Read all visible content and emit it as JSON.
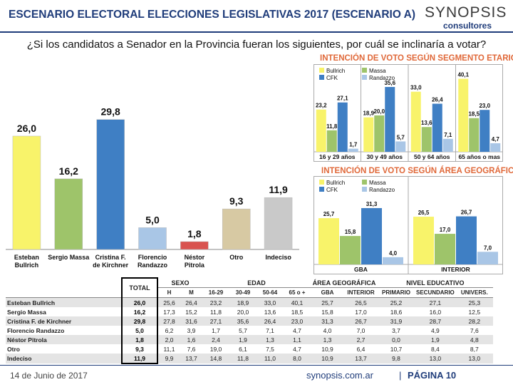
{
  "header": {
    "title": "ESCENARIO ELECTORAL ELECCIONES LEGISLATIVAS 2017 (ESCENARIO A)",
    "logo_name": "SYNOPSIS",
    "logo_sub": "consultores"
  },
  "question": "¿Si los candidatos a Senador en la Provincia fueran los siguientes, por cuál se inclinaría a votar?",
  "colors": {
    "bullrich": "#f8f36a",
    "massa": "#9ec46a",
    "cfk": "#3f7fc4",
    "randazzo": "#a9c6e6",
    "pitrola": "#d9534f",
    "otro": "#d7c9a3",
    "indeciso": "#c9c9c9",
    "title_blue": "#1f3c7a",
    "accent_orange": "#e0693a"
  },
  "chart_data": [
    {
      "type": "bar",
      "categories": [
        "Esteban Bullrich",
        "Sergio Massa",
        "Cristina F. de Kirchner",
        "Florencio Randazzo",
        "Néstor Pitrola",
        "Otro",
        "Indeciso"
      ],
      "values": [
        26.0,
        16.2,
        29.8,
        5.0,
        1.8,
        9.3,
        11.9
      ],
      "value_labels": [
        "26,0",
        "16,2",
        "29,8",
        "5,0",
        "1,8",
        "9,3",
        "11,9"
      ],
      "ylim": [
        0,
        34
      ]
    },
    {
      "type": "bar",
      "title": "INTENCIÓN DE VOTO SEGÚN SEGMENTO ETARIO",
      "categories": [
        "16 y 29 años",
        "30 y 49 años",
        "50 y 64 años",
        "65 años o mas"
      ],
      "series": [
        {
          "name": "Bullrich",
          "values": [
            23.2,
            18.9,
            33.0,
            40.1
          ],
          "labels": [
            "23,2",
            "18,9",
            "33,0",
            "40,1"
          ]
        },
        {
          "name": "Massa",
          "values": [
            11.8,
            20.0,
            13.6,
            18.5
          ],
          "labels": [
            "11,8",
            "20,0",
            "13,6",
            "18,5"
          ]
        },
        {
          "name": "CFK",
          "values": [
            27.1,
            35.6,
            26.4,
            23.0
          ],
          "labels": [
            "27,1",
            "35,6",
            "26,4",
            "23,0"
          ]
        },
        {
          "name": "Randazzo",
          "values": [
            1.7,
            5.7,
            7.1,
            4.7
          ],
          "labels": [
            "1,7",
            "5,7",
            "7,1",
            "4,7"
          ]
        }
      ],
      "ylim": [
        0,
        45
      ],
      "legend": "top-left"
    },
    {
      "type": "bar",
      "title": "INTENCIÓN DE VOTO SEGÚN ÁREA GEOGRÁFICA",
      "categories": [
        "GBA",
        "INTERIOR"
      ],
      "series": [
        {
          "name": "Bullrich",
          "values": [
            25.7,
            26.5
          ],
          "labels": [
            "25,7",
            "26,5"
          ]
        },
        {
          "name": "Massa",
          "values": [
            15.8,
            17.0
          ],
          "labels": [
            "15,8",
            "17,0"
          ]
        },
        {
          "name": "CFK",
          "values": [
            31.3,
            26.7
          ],
          "labels": [
            "31,3",
            "26,7"
          ]
        },
        {
          "name": "Randazzo",
          "values": [
            4.0,
            7.0
          ],
          "labels": [
            "4,0",
            "7,0"
          ]
        }
      ],
      "ylim": [
        0,
        40
      ],
      "legend": "top-left"
    },
    {
      "type": "table",
      "groups": [
        {
          "label": "SEXO",
          "cols": [
            "H",
            "M"
          ]
        },
        {
          "label": "EDAD",
          "cols": [
            "16-29",
            "30-49",
            "50-64",
            "65 o +"
          ]
        },
        {
          "label": "ÁREA GEOGRÁFICA",
          "cols": [
            "GBA",
            "INTERIOR"
          ]
        },
        {
          "label": "NIVEL EDUCATIVO",
          "cols": [
            "PRIMARIO",
            "SECUNDARIO",
            "UNIVERS."
          ]
        }
      ],
      "total_label": "TOTAL",
      "rows": [
        {
          "label": "Esteban Bullrich",
          "total": "26,0",
          "cells": [
            "25,6",
            "26,4",
            "23,2",
            "18,9",
            "33,0",
            "40,1",
            "25,7",
            "26,5",
            "25,2",
            "27,1",
            "25,3"
          ]
        },
        {
          "label": "Sergio Massa",
          "total": "16,2",
          "cells": [
            "17,3",
            "15,2",
            "11,8",
            "20,0",
            "13,6",
            "18,5",
            "15,8",
            "17,0",
            "18,6",
            "16,0",
            "12,5"
          ]
        },
        {
          "label": "Cristina F. de Kirchner",
          "total": "29,8",
          "cells": [
            "27,8",
            "31,6",
            "27,1",
            "35,6",
            "26,4",
            "23,0",
            "31,3",
            "26,7",
            "31,9",
            "28,7",
            "28,2"
          ]
        },
        {
          "label": "Florencio Randazzo",
          "total": "5,0",
          "cells": [
            "6,2",
            "3,9",
            "1,7",
            "5,7",
            "7,1",
            "4,7",
            "4,0",
            "7,0",
            "3,7",
            "4,9",
            "7,6"
          ]
        },
        {
          "label": "Néstor Pitrola",
          "total": "1,8",
          "cells": [
            "2,0",
            "1,6",
            "2,4",
            "1,9",
            "1,3",
            "1,1",
            "1,3",
            "2,7",
            "0,0",
            "1,9",
            "4,8"
          ]
        },
        {
          "label": "Otro",
          "total": "9,3",
          "cells": [
            "11,1",
            "7,6",
            "19,0",
            "6,1",
            "7,5",
            "4,7",
            "10,9",
            "6,4",
            "10,7",
            "8,4",
            "8,7"
          ]
        },
        {
          "label": "Indeciso",
          "total": "11,9",
          "cells": [
            "9,9",
            "13,7",
            "14,8",
            "11,8",
            "11,0",
            "8,0",
            "10,9",
            "13,7",
            "9,8",
            "13,0",
            "13,0"
          ]
        }
      ]
    }
  ],
  "footer": {
    "date": "14 de Junio de 2017",
    "site": "synopsis.com.ar",
    "separator": "|",
    "page": "PÁGINA 10"
  }
}
